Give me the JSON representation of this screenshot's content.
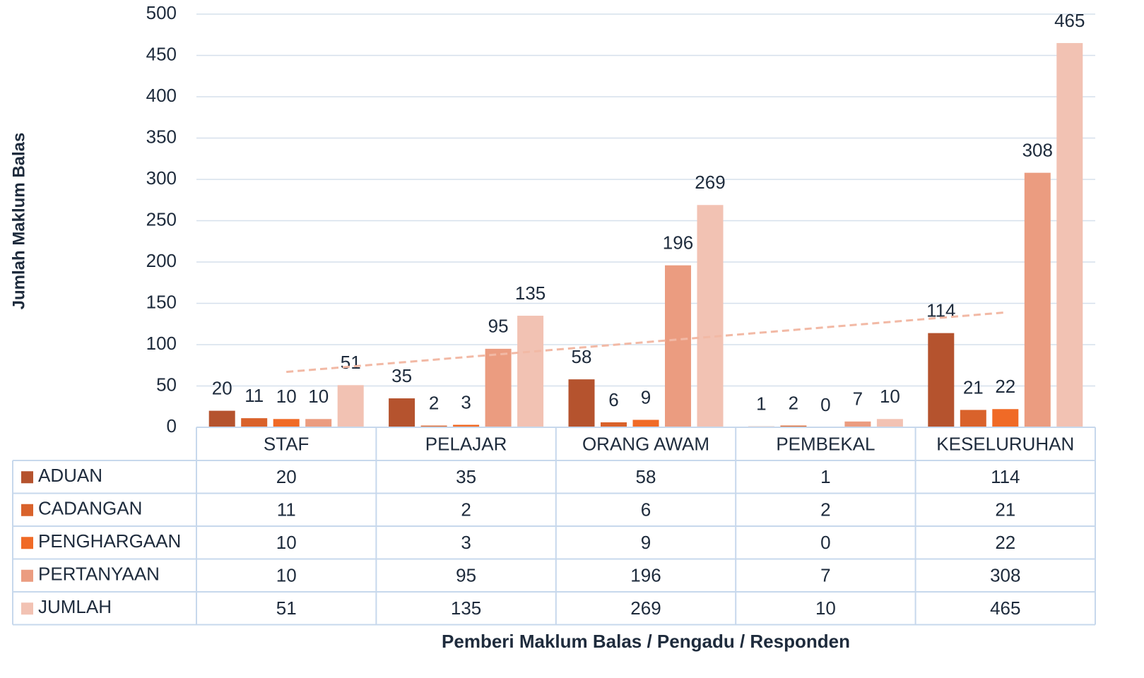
{
  "chart_data": {
    "type": "bar",
    "y_axis_label": "Jumlah Maklum Balas",
    "x_axis_label": "Pemberi Maklum Balas / Pengadu / Responden",
    "categories": [
      "STAF",
      "PELAJAR",
      "ORANG AWAM",
      "PEMBEKAL",
      "KESELURUHAN"
    ],
    "series": [
      {
        "name": "ADUAN",
        "color": "#b5532e",
        "values": [
          20,
          35,
          58,
          1,
          114
        ]
      },
      {
        "name": "CADANGAN",
        "color": "#d9622b",
        "values": [
          11,
          2,
          6,
          2,
          21
        ]
      },
      {
        "name": "PENGHARGAAN",
        "color": "#f06a26",
        "values": [
          10,
          3,
          9,
          0,
          22
        ]
      },
      {
        "name": "PERTANYAAN",
        "color": "#eb9c80",
        "values": [
          10,
          95,
          196,
          7,
          308
        ]
      },
      {
        "name": "JUMLAH",
        "color": "#f2c2b3",
        "values": [
          51,
          135,
          269,
          10,
          465
        ]
      }
    ],
    "trendline": {
      "color": "#f2b9a5",
      "start": 67,
      "end": 139
    },
    "ylim": [
      0,
      500
    ],
    "yticks": [
      0,
      50,
      100,
      150,
      200,
      250,
      300,
      350,
      400,
      450,
      500
    ],
    "grid": true,
    "data_table": true
  }
}
